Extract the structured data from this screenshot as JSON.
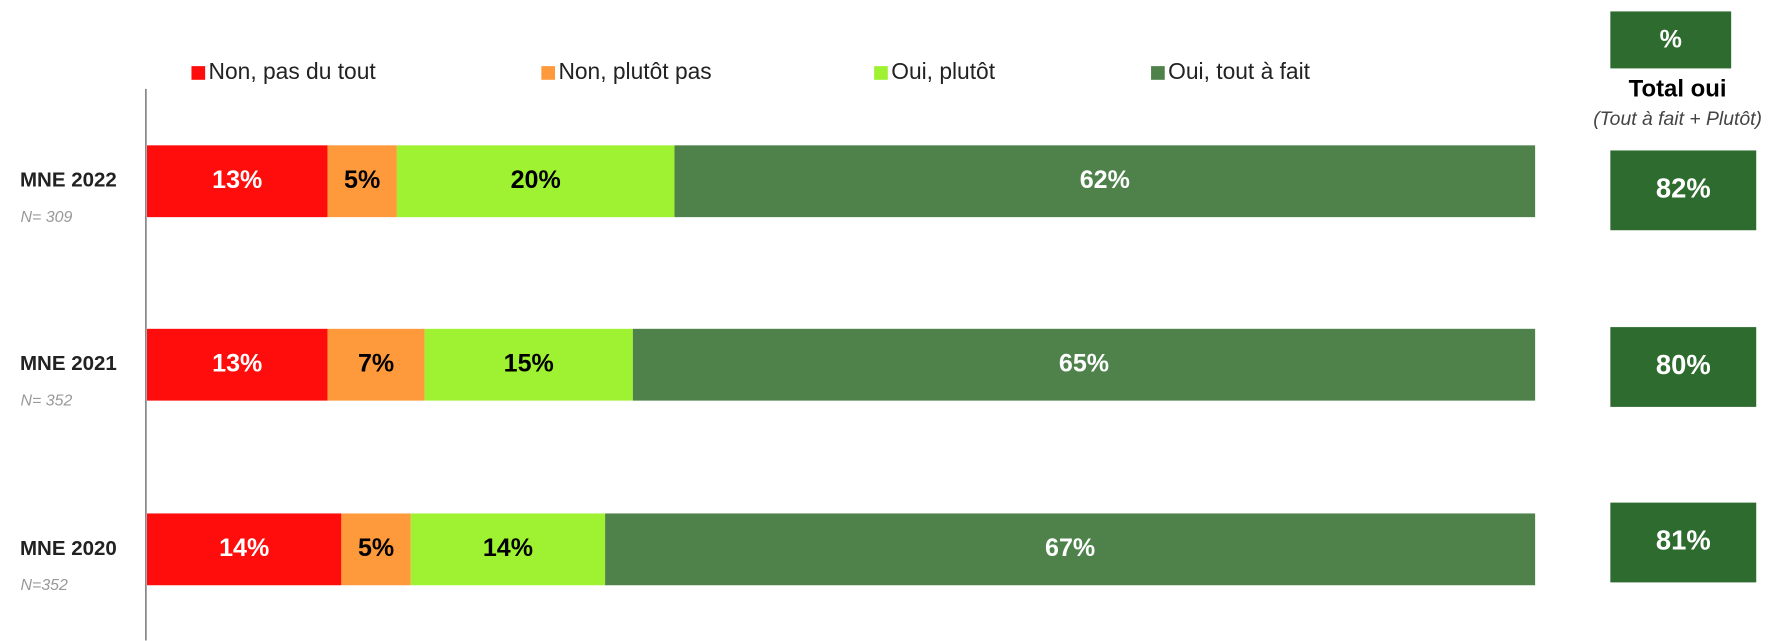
{
  "chart_data": {
    "type": "stacked_bar_horizontal",
    "categories": [
      "MNE 2022",
      "MNE 2021",
      "MNE 2020"
    ],
    "sample_sizes": [
      "N= 309",
      "N= 352",
      "N=352"
    ],
    "xlim": [
      0,
      100
    ],
    "series": [
      {
        "name": "Non, pas du tout",
        "color": "#ff0d0d",
        "label_color": "#ffffff",
        "values": [
          13,
          13,
          14
        ],
        "value_labels": [
          "13%",
          "13%",
          "14%"
        ]
      },
      {
        "name": "Non, plutôt pas",
        "color": "#ff9a3c",
        "label_color": "#000000",
        "values": [
          5,
          7,
          5
        ],
        "value_labels": [
          "5%",
          "7%",
          "5%"
        ]
      },
      {
        "name": "Oui, plutôt",
        "color": "#9ef232",
        "label_color": "#000000",
        "values": [
          20,
          15,
          14
        ],
        "value_labels": [
          "20%",
          "15%",
          "14%"
        ]
      },
      {
        "name": "Oui, tout à fait",
        "color": "#4e824a",
        "label_color": "#ffffff",
        "values": [
          62,
          65,
          67
        ],
        "value_labels": [
          "62%",
          "65%",
          "67%"
        ]
      }
    ],
    "total": {
      "header": "%",
      "title": "Total oui",
      "subtitle": "(Tout à fait + Plutôt)",
      "color": "#2e6b2e",
      "values": [
        82,
        80,
        81
      ],
      "value_labels": [
        "82%",
        "80%",
        "81%"
      ]
    }
  }
}
